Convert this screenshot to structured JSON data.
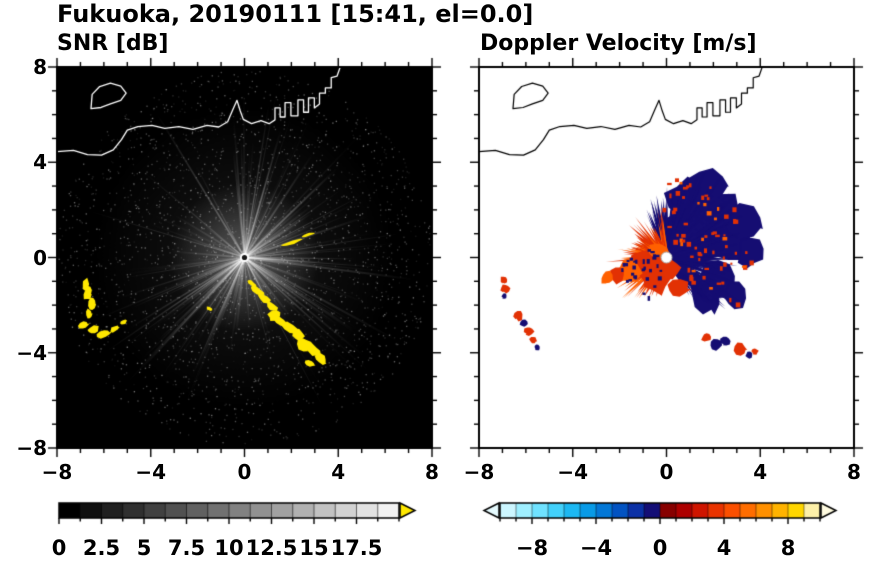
{
  "title": "Fukuoka, 20190111 [15:41, el=0.0]",
  "panels": {
    "snr": {
      "title": "SNR [dB]"
    },
    "velocity": {
      "title": "Doppler Velocity [m/s]"
    }
  },
  "coastline": {
    "mainland": [
      [
        -8,
        4.45
      ],
      [
        -7.3,
        4.5
      ],
      [
        -6.7,
        4.32
      ],
      [
        -6.1,
        4.3
      ],
      [
        -5.6,
        4.52
      ],
      [
        -5.25,
        4.95
      ],
      [
        -5,
        5.35
      ],
      [
        -4.55,
        5.5
      ],
      [
        -3.95,
        5.55
      ],
      [
        -3.4,
        5.42
      ],
      [
        -2.8,
        5.5
      ],
      [
        -2.2,
        5.38
      ],
      [
        -1.6,
        5.55
      ],
      [
        -1.1,
        5.48
      ],
      [
        -0.72,
        5.7
      ],
      [
        -0.5,
        6.2
      ],
      [
        -0.32,
        6.6
      ],
      [
        -0.18,
        6.15
      ],
      [
        -0.05,
        5.8
      ],
      [
        0.3,
        5.62
      ],
      [
        0.7,
        5.75
      ],
      [
        1.05,
        5.62
      ],
      [
        1.3,
        5.78
      ],
      [
        1.3,
        6.28
      ],
      [
        1.52,
        6.28
      ],
      [
        1.52,
        5.9
      ],
      [
        1.73,
        5.9
      ],
      [
        1.73,
        6.5
      ],
      [
        1.98,
        6.5
      ],
      [
        1.98,
        5.95
      ],
      [
        2.28,
        5.95
      ],
      [
        2.28,
        6.62
      ],
      [
        2.52,
        6.62
      ],
      [
        2.52,
        6.1
      ],
      [
        2.73,
        6.1
      ],
      [
        2.73,
        6.7
      ],
      [
        2.98,
        6.7
      ],
      [
        2.98,
        6.28
      ],
      [
        3.2,
        6.45
      ],
      [
        3.2,
        6.9
      ],
      [
        3.45,
        6.9
      ],
      [
        3.45,
        7.12
      ],
      [
        3.7,
        7.12
      ],
      [
        3.7,
        7.55
      ],
      [
        3.95,
        7.62
      ],
      [
        4.12,
        8.1
      ]
    ],
    "island": [
      [
        -6.55,
        6.25
      ],
      [
        -6.5,
        6.85
      ],
      [
        -6.18,
        7.18
      ],
      [
        -5.72,
        7.32
      ],
      [
        -5.28,
        7.2
      ],
      [
        -5.05,
        6.9
      ],
      [
        -5.28,
        6.6
      ],
      [
        -5.72,
        6.45
      ],
      [
        -6.12,
        6.3
      ]
    ]
  },
  "chart_data": [
    {
      "type": "heatmap",
      "name": "snr-ppi",
      "title": "SNR [dB]",
      "xlim": [
        -8,
        8
      ],
      "ylim": [
        -8,
        8
      ],
      "axis_ticks": {
        "values": [
          -8,
          -4,
          0,
          4,
          8
        ],
        "labels": [
          "−8",
          "−4",
          "0",
          "4",
          "8"
        ]
      },
      "background": "#000000",
      "coast_color": "#ffffff",
      "clutter_color": "#ffe800",
      "colorbar": {
        "range": [
          0,
          20
        ],
        "segments": 16,
        "low_color": "#000000",
        "high_color": "#f2f2f2",
        "over_arrow_color": "#ffe800",
        "tick_values": [
          0,
          2.5,
          5,
          7.5,
          10,
          12.5,
          15,
          17.5
        ],
        "tick_labels": [
          "0",
          "2.5",
          "5",
          "7.5",
          "10",
          "12.5",
          "15",
          "17.5"
        ]
      },
      "features": {
        "clutter_blobs": [
          [
            0.32,
            -1.1,
            0.22,
            0.1,
            40
          ],
          [
            0.55,
            -1.4,
            0.3,
            0.13,
            35
          ],
          [
            0.85,
            -1.72,
            0.32,
            0.15,
            35
          ],
          [
            1.15,
            -2.05,
            0.28,
            0.17,
            40
          ],
          [
            1.28,
            -2.45,
            0.2,
            0.28,
            80
          ],
          [
            1.55,
            -2.72,
            0.33,
            0.16,
            30
          ],
          [
            1.95,
            -2.95,
            0.38,
            0.18,
            25
          ],
          [
            2.3,
            -3.25,
            0.28,
            0.22,
            45
          ],
          [
            2.55,
            -3.65,
            0.3,
            0.26,
            60
          ],
          [
            2.95,
            -3.9,
            0.38,
            0.22,
            30
          ],
          [
            3.25,
            -4.25,
            0.26,
            0.18,
            40
          ],
          [
            2.8,
            -4.45,
            0.2,
            0.12,
            20
          ],
          [
            2,
            0.62,
            0.45,
            0.07,
            -17
          ],
          [
            2.72,
            0.95,
            0.3,
            0.06,
            -19
          ],
          [
            -1.5,
            -2.15,
            0.13,
            0.08,
            30
          ],
          [
            -6.78,
            -1.1,
            0.14,
            0.26,
            10
          ],
          [
            -6.68,
            -1.5,
            0.18,
            0.3,
            15
          ],
          [
            -6.5,
            -1.95,
            0.15,
            0.25,
            5
          ],
          [
            -6.62,
            -2.35,
            0.12,
            0.2,
            0
          ],
          [
            -6.85,
            -2.85,
            0.22,
            0.16,
            -20
          ],
          [
            -6.45,
            -3.05,
            0.28,
            0.17,
            -10
          ],
          [
            -6,
            -3.2,
            0.3,
            0.16,
            -15
          ],
          [
            -5.55,
            -3,
            0.2,
            0.12,
            -20
          ],
          [
            -5.15,
            -2.72,
            0.14,
            0.1,
            -30
          ]
        ]
      }
    },
    {
      "type": "heatmap",
      "name": "velocity-ppi",
      "title": "Doppler Velocity [m/s]",
      "xlim": [
        -8,
        8
      ],
      "ylim": [
        -8,
        8
      ],
      "axis_ticks": {
        "values": [
          -8,
          -4,
          0,
          4,
          8
        ],
        "labels": [
          "−8",
          "−4",
          "0",
          "4",
          "8"
        ]
      },
      "background": "#ffffff",
      "coast_color": "#000000",
      "toward_color": "#150d72",
      "away_color": "#e23104",
      "away_color2": "#ff6000",
      "colorbar": {
        "range": [
          -10,
          10
        ],
        "segment_colors": [
          "#ccf6ff",
          "#9fefff",
          "#6fe2ff",
          "#42d1fb",
          "#1cb8f2",
          "#089ae6",
          "#0377d6",
          "#0253c2",
          "#0b31a6",
          "#140e76",
          "#870000",
          "#ad0000",
          "#cf1500",
          "#e93300",
          "#fb4f00",
          "#ff6d00",
          "#ff9000",
          "#ffb300",
          "#ffd600",
          "#fdf0a8"
        ],
        "under_arrow_color": "#e6fbff",
        "over_arrow_color": "#fffbe0",
        "tick_values": [
          -8,
          -4,
          0,
          4,
          8
        ],
        "tick_labels": [
          "−8",
          "−4",
          "0",
          "4",
          "8"
        ]
      },
      "features": {
        "navy_cores": [
          [
            1.2,
            1.1,
            1.4
          ],
          [
            2.2,
            1.8,
            1.1
          ],
          [
            0.9,
            2.4,
            0.95
          ],
          [
            2.7,
            0.6,
            1.1
          ],
          [
            2.3,
            -0.9,
            0.9
          ],
          [
            1.6,
            -1.7,
            0.7
          ],
          [
            3.3,
            1.5,
            0.75
          ],
          [
            1.8,
            3,
            0.8
          ],
          [
            0.4,
            1.4,
            0.65
          ],
          [
            3.6,
            0.2,
            0.6
          ],
          [
            2.9,
            -1.6,
            0.55
          ]
        ],
        "red_cores": [
          [
            -0.9,
            -0.3,
            0.75
          ],
          [
            -1.6,
            -0.55,
            0.55
          ],
          [
            -0.42,
            -0.95,
            0.6
          ],
          [
            0.15,
            -0.5,
            0.5
          ],
          [
            -0.35,
            0.3,
            0.42
          ],
          [
            0.5,
            -1.3,
            0.45
          ],
          [
            -2.1,
            -0.7,
            0.4
          ],
          [
            -2.55,
            -0.85,
            0.3
          ]
        ],
        "outlier_blobs": [
          [
            -6.95,
            -0.95,
            0.16,
            "red"
          ],
          [
            -6.88,
            -1.3,
            0.18,
            "red"
          ],
          [
            -6.92,
            -1.62,
            0.12,
            "navy"
          ],
          [
            -6.3,
            -2.45,
            0.2,
            "red"
          ],
          [
            -6.08,
            -2.78,
            0.16,
            "navy"
          ],
          [
            -5.88,
            -3.08,
            0.2,
            "red"
          ],
          [
            -5.68,
            -3.45,
            0.15,
            "red"
          ],
          [
            -5.52,
            -3.78,
            0.12,
            "navy"
          ],
          [
            1.7,
            -3.35,
            0.2,
            "red"
          ],
          [
            2.1,
            -3.65,
            0.25,
            "navy"
          ],
          [
            2.52,
            -3.5,
            0.2,
            "navy"
          ],
          [
            3.15,
            -3.85,
            0.28,
            "red"
          ],
          [
            3.52,
            -4.1,
            0.16,
            "navy"
          ],
          [
            3.78,
            -3.95,
            0.14,
            "red"
          ]
        ]
      }
    }
  ]
}
